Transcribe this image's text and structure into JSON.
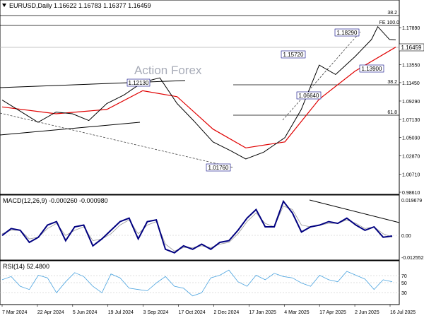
{
  "title_bar": {
    "instrument_line": "EURUSD,Daily  1.16622 1.16783 1.16377 1.16459"
  },
  "watermark": "Action Forex",
  "colors": {
    "price_line": "#000000",
    "moving_average": "#e00000",
    "macd_line": "#000080",
    "signal_line": "#999999",
    "rsi_line": "#4aa3df",
    "grid": "#c0c0c0",
    "axis_text": "#000000",
    "price_tag_bg": "#ffffff"
  },
  "chart_data": [
    {
      "type": "line",
      "panel": "price",
      "series": [
        {
          "name": "",
          "x": [
            "2024-03-07",
            "2024-04-01",
            "2024-04-22",
            "2024-05-15",
            "2024-06-05",
            "2024-06-26",
            "2024-07-19",
            "2024-08-10",
            "2024-09-03",
            "2024-09-25",
            "2024-10-17",
            "2024-11-07",
            "2024-12-02",
            "2024-12-24",
            "2025-01-13",
            "2025-02-05",
            "2025-03-04",
            "2025-03-25",
            "2025-04-17",
            "2025-05-08",
            "2025-06-02",
            "2025-06-23",
            "2025-07-01",
            "2025-07-16",
            "2025-07-24"
          ],
          "y": [
            1.094,
            1.08,
            1.068,
            1.08,
            1.078,
            1.07,
            1.09,
            1.1,
            1.115,
            1.12,
            1.09,
            1.07,
            1.045,
            1.035,
            1.025,
            1.033,
            1.05,
            1.083,
            1.135,
            1.124,
            1.145,
            1.165,
            1.18,
            1.165,
            1.1646
          ]
        },
        {
          "name": "",
          "x": [
            "2024-03-07",
            "2024-05-15",
            "2024-07-19",
            "2024-09-03",
            "2024-10-17",
            "2024-12-02",
            "2025-01-13",
            "2025-03-04",
            "2025-04-17",
            "2025-06-02",
            "2025-07-24"
          ],
          "y": [
            1.086,
            1.078,
            1.083,
            1.105,
            1.098,
            1.06,
            1.038,
            1.045,
            1.095,
            1.128,
            1.156
          ]
        }
      ],
      "x_ticks": [
        "7 Mar 2024",
        "22 Apr 2024",
        "5 Jun 2024",
        "19 Jul 2024",
        "3 Sep 2024",
        "17 Oct 2024",
        "2 Dec 2024",
        "17 Jan 2025",
        "4 Mar 2025",
        "17 Apr 2025",
        "2 Jun 2025",
        "16 Jul 2025"
      ],
      "y_ticks": [
        "1.17890",
        "1.15710",
        "1.13550",
        "1.11450",
        "1.09290",
        "1.07130",
        "1.05030",
        "1.02870",
        "1.00710",
        "0.98610"
      ],
      "ylim": [
        0.9861,
        1.198
      ],
      "annotations": [
        "1.12130",
        "1.01760",
        "1.15720",
        "1.06640",
        "1.18290",
        "1.13900"
      ],
      "fibonacci_levels": [
        "38.2",
        "FE 100.0",
        "38.2",
        "61.8"
      ],
      "current_price": "1.16459"
    },
    {
      "type": "line",
      "panel": "macd",
      "label": "MACD(12,26,9) -0.000260 -0.000980",
      "series": [
        {
          "name": "",
          "y": [
            0.0,
            0.004,
            0.003,
            -0.004,
            -0.001,
            0.006,
            0.008,
            -0.003,
            0.005,
            0.006,
            -0.006,
            -0.002,
            0.003,
            0.008,
            0.01,
            -0.002,
            0.008,
            0.009,
            -0.008,
            -0.01,
            -0.006,
            -0.008,
            -0.005,
            -0.008,
            -0.004,
            -0.003,
            0.003,
            0.01,
            0.015,
            0.005,
            0.005,
            0.0197,
            0.013,
            0.002,
            0.005,
            0.006,
            0.008,
            0.007,
            0.01,
            0.006,
            0.003,
            0.005,
            -0.001,
            -0.0003
          ]
        },
        {
          "name": "",
          "y": [
            0.001,
            0.003,
            0.003,
            -0.002,
            -0.001,
            0.004,
            0.007,
            0.0,
            0.003,
            0.005,
            -0.003,
            -0.002,
            0.001,
            0.006,
            0.009,
            0.001,
            0.006,
            0.008,
            -0.005,
            -0.009,
            -0.007,
            -0.007,
            -0.006,
            -0.007,
            -0.005,
            -0.004,
            0.001,
            0.008,
            0.013,
            0.007,
            0.005,
            0.017,
            0.015,
            0.006,
            0.005,
            0.006,
            0.007,
            0.007,
            0.009,
            0.007,
            0.004,
            0.005,
            0.001,
            -0.001
          ]
        }
      ],
      "y_ticks": [
        "0.019679",
        "0.00",
        "-0.012552"
      ],
      "ylim": [
        -0.012552,
        0.019679
      ]
    },
    {
      "type": "line",
      "panel": "rsi",
      "label": "RSI(14) 52.4800",
      "series": [
        {
          "name": "",
          "y": [
            55,
            60,
            45,
            40,
            62,
            58,
            35,
            52,
            66,
            60,
            45,
            35,
            64,
            58,
            42,
            40,
            38,
            50,
            60,
            45,
            42,
            30,
            35,
            58,
            62,
            70,
            52,
            45,
            62,
            55,
            65,
            60,
            58,
            50,
            45,
            62,
            55,
            52,
            68,
            62,
            56,
            40,
            55,
            52
          ]
        }
      ],
      "y_ticks": [
        "70",
        "50",
        "30"
      ],
      "ylim": [
        20,
        80
      ]
    }
  ]
}
